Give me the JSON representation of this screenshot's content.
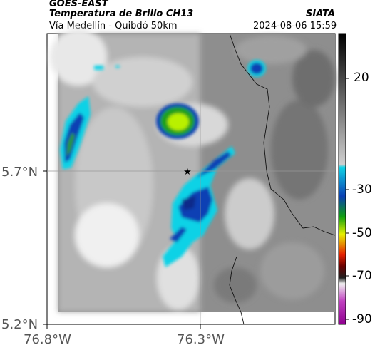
{
  "header": {
    "satellite": "GOES-EAST",
    "product": "Temperatura de Brillo CH13",
    "region": "Vía Medellín - Quibdó 50km",
    "org": "SIATA",
    "datetime": "2024-08-06 15:59"
  },
  "axes": {
    "y_ticks": [
      "5.7°N",
      "5.2°N"
    ],
    "x_ticks": [
      "76.8°W",
      "76.3°W"
    ]
  },
  "colorbar": {
    "ticks": [
      "20",
      "-30",
      "-50",
      "-70",
      "-90"
    ]
  },
  "map_features": {
    "marker_icon": "star-icon",
    "marker_description_visible": false
  }
}
